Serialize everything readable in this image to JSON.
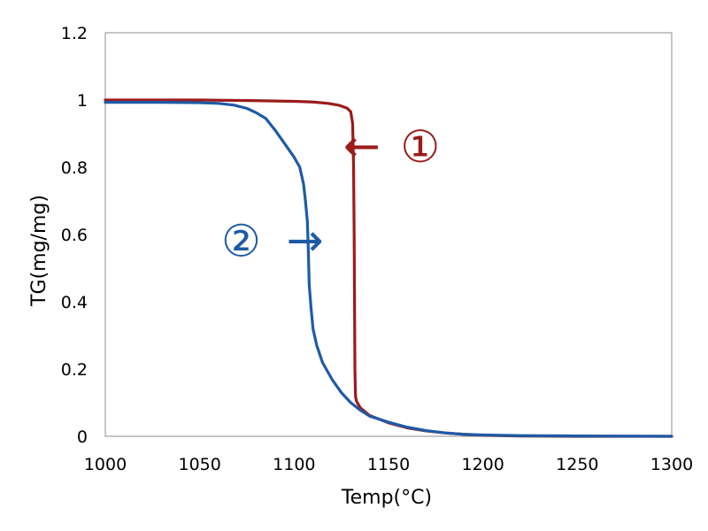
{
  "chart_data": {
    "type": "line",
    "title": "",
    "xlabel": "Temp(°C)",
    "ylabel": "TG(mg/mg)",
    "xlim": [
      1000,
      1300
    ],
    "ylim": [
      0,
      1.2
    ],
    "xticks": [
      1000,
      1050,
      1100,
      1150,
      1200,
      1250,
      1300
    ],
    "yticks": [
      0,
      0.2,
      0.4,
      0.6,
      0.8,
      1,
      1.2
    ],
    "xtick_labels": [
      "1000",
      "1050",
      "1100",
      "1150",
      "1200",
      "1250",
      "1300"
    ],
    "ytick_labels": [
      "0",
      "0.2",
      "0.4",
      "0.6",
      "0.8",
      "1",
      "1.2"
    ],
    "grid": false,
    "legend": "none",
    "series": [
      {
        "label": "①",
        "color": "#9b1b1b",
        "points": [
          [
            1000,
            1.0
          ],
          [
            1050,
            1.0
          ],
          [
            1080,
            0.998
          ],
          [
            1100,
            0.996
          ],
          [
            1110,
            0.994
          ],
          [
            1118,
            0.99
          ],
          [
            1124,
            0.984
          ],
          [
            1128,
            0.976
          ],
          [
            1130,
            0.965
          ],
          [
            1131,
            0.93
          ],
          [
            1131.5,
            0.8
          ],
          [
            1131.8,
            0.6
          ],
          [
            1132,
            0.4
          ],
          [
            1132.2,
            0.2
          ],
          [
            1132.5,
            0.12
          ],
          [
            1133,
            0.105
          ],
          [
            1135,
            0.085
          ],
          [
            1140,
            0.062
          ],
          [
            1150,
            0.04
          ],
          [
            1160,
            0.025
          ],
          [
            1170,
            0.016
          ],
          [
            1180,
            0.01
          ],
          [
            1190,
            0.006
          ],
          [
            1200,
            0.003
          ],
          [
            1220,
            0.001
          ],
          [
            1250,
            0.0
          ],
          [
            1300,
            0.0
          ]
        ]
      },
      {
        "label": "②",
        "color": "#1f5aa5",
        "points": [
          [
            1000,
            0.993
          ],
          [
            1030,
            0.993
          ],
          [
            1050,
            0.992
          ],
          [
            1060,
            0.99
          ],
          [
            1068,
            0.985
          ],
          [
            1075,
            0.975
          ],
          [
            1080,
            0.962
          ],
          [
            1085,
            0.945
          ],
          [
            1090,
            0.91
          ],
          [
            1095,
            0.87
          ],
          [
            1100,
            0.83
          ],
          [
            1103,
            0.8
          ],
          [
            1105,
            0.75
          ],
          [
            1106,
            0.7
          ],
          [
            1107,
            0.64
          ],
          [
            1107.5,
            0.56
          ],
          [
            1108,
            0.45
          ],
          [
            1109,
            0.38
          ],
          [
            1110,
            0.32
          ],
          [
            1112,
            0.27
          ],
          [
            1115,
            0.22
          ],
          [
            1120,
            0.17
          ],
          [
            1125,
            0.13
          ],
          [
            1130,
            0.1
          ],
          [
            1135,
            0.078
          ],
          [
            1140,
            0.06
          ],
          [
            1150,
            0.042
          ],
          [
            1160,
            0.027
          ],
          [
            1170,
            0.017
          ],
          [
            1180,
            0.01
          ],
          [
            1190,
            0.006
          ],
          [
            1200,
            0.004
          ],
          [
            1220,
            0.002
          ],
          [
            1250,
            0.001
          ],
          [
            1300,
            0.0
          ]
        ]
      }
    ],
    "annotations": [
      {
        "text": "①",
        "arrow": "←",
        "series": "①",
        "color": "#9b1b1b",
        "at": [
          1149,
          0.86
        ]
      },
      {
        "text": "②",
        "arrow": "→",
        "series": "②",
        "color": "#1f5aa5",
        "at": [
          1072,
          0.58
        ]
      }
    ]
  }
}
